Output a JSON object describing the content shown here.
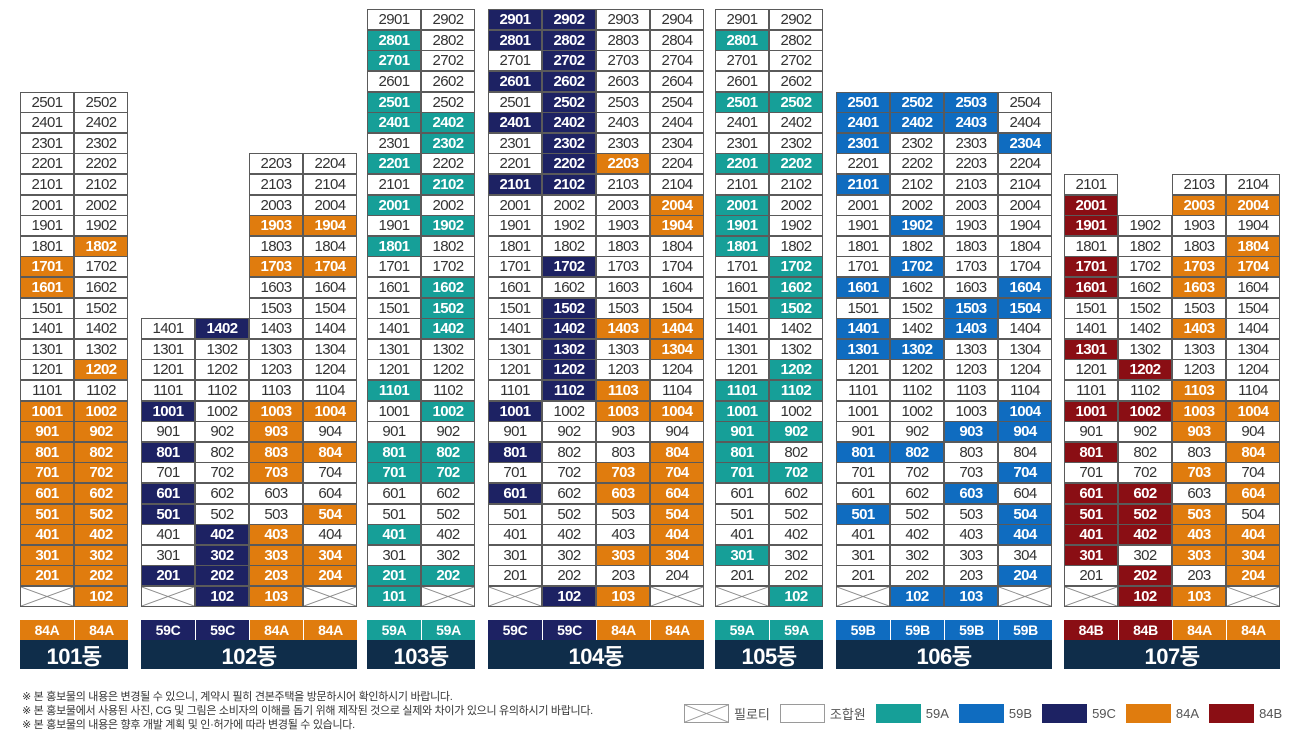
{
  "colors": {
    "59A": "#169f98",
    "59B": "#0f6cc0",
    "59C": "#1d2263",
    "84A": "#e07c0e",
    "84B": "#8a0e14",
    "name_bar": "#0f2d4a"
  },
  "buildings": [
    {
      "name": "101동",
      "top_floor": 25,
      "columns": [
        {
          "line": "01",
          "type": "84A",
          "floors": [
            2,
            25
          ],
          "piloti": [
            1
          ],
          "color_floors": [
            2,
            3,
            4,
            5,
            6,
            7,
            8,
            9,
            10,
            16,
            17
          ]
        },
        {
          "line": "02",
          "type": "84A",
          "floors": [
            1,
            25
          ],
          "color_floors": [
            1,
            2,
            3,
            4,
            5,
            6,
            7,
            8,
            9,
            10,
            12,
            18
          ]
        }
      ]
    },
    {
      "name": "102동",
      "top_floor": 25,
      "columns": [
        {
          "line": "01",
          "type": "59C",
          "floors": [
            2,
            14
          ],
          "piloti": [
            1
          ],
          "color_floors": [
            2,
            5,
            6,
            8,
            10
          ]
        },
        {
          "line": "02",
          "type": "59C",
          "floors": [
            1,
            14
          ],
          "color_floors": [
            1,
            2,
            3,
            4,
            14
          ]
        },
        {
          "line": "03",
          "type": "84A",
          "floors": [
            1,
            22
          ],
          "color_floors": [
            1,
            2,
            3,
            4,
            7,
            8,
            9,
            10,
            17,
            19
          ]
        },
        {
          "line": "04",
          "type": "84A",
          "floors": [
            2,
            22
          ],
          "piloti": [
            1
          ],
          "color_floors": [
            2,
            3,
            5,
            8,
            10,
            17,
            19
          ]
        }
      ]
    },
    {
      "name": "103동",
      "top_floor": 29,
      "columns": [
        {
          "line": "01",
          "type": "59A",
          "floors": [
            1,
            29
          ],
          "color_floors": [
            1,
            2,
            4,
            7,
            8,
            11,
            18,
            20,
            22,
            24,
            25,
            27,
            28
          ]
        },
        {
          "line": "02",
          "type": "59A",
          "floors": [
            2,
            29
          ],
          "piloti": [
            1
          ],
          "color_floors": [
            2,
            7,
            8,
            10,
            14,
            15,
            16,
            19,
            21,
            23,
            24
          ]
        }
      ]
    },
    {
      "name": "104동",
      "top_floor": 29,
      "columns": [
        {
          "line": "01",
          "type": "59C",
          "floors": [
            2,
            29
          ],
          "piloti": [
            1
          ],
          "color_floors": [
            6,
            8,
            10,
            21,
            24,
            26,
            28,
            29
          ]
        },
        {
          "line": "02",
          "type": "59C",
          "floors": [
            1,
            29
          ],
          "color_floors": [
            1,
            11,
            12,
            13,
            14,
            15,
            17,
            21,
            22,
            23,
            24,
            25,
            26,
            27,
            28,
            29
          ]
        },
        {
          "line": "03",
          "type": "84A",
          "floors": [
            1,
            29
          ],
          "color_floors": [
            1,
            3,
            6,
            7,
            10,
            11,
            14,
            22
          ]
        },
        {
          "line": "04",
          "type": "84A",
          "floors": [
            2,
            29
          ],
          "piloti": [
            1
          ],
          "color_floors": [
            3,
            4,
            5,
            6,
            7,
            8,
            10,
            13,
            14,
            19,
            20
          ]
        }
      ]
    },
    {
      "name": "105동",
      "top_floor": 29,
      "columns": [
        {
          "line": "01",
          "type": "59A",
          "floors": [
            2,
            29
          ],
          "piloti": [
            1
          ],
          "color_floors": [
            3,
            7,
            8,
            9,
            10,
            11,
            18,
            19,
            20,
            22,
            25,
            28
          ]
        },
        {
          "line": "02",
          "type": "59A",
          "floors": [
            1,
            29
          ],
          "color_floors": [
            1,
            7,
            9,
            11,
            12,
            15,
            16,
            17,
            22,
            25
          ]
        }
      ]
    },
    {
      "name": "106동",
      "top_floor": 25,
      "columns": [
        {
          "line": "01",
          "type": "59B",
          "floors": [
            2,
            25
          ],
          "piloti": [
            1
          ],
          "color_floors": [
            5,
            8,
            13,
            14,
            16,
            21,
            23,
            24,
            25
          ]
        },
        {
          "line": "02",
          "type": "59B",
          "floors": [
            1,
            25
          ],
          "color_floors": [
            1,
            8,
            13,
            17,
            19,
            24,
            25
          ]
        },
        {
          "line": "03",
          "type": "59B",
          "floors": [
            1,
            25
          ],
          "color_floors": [
            1,
            6,
            9,
            14,
            15,
            24,
            25
          ]
        },
        {
          "line": "04",
          "type": "59B",
          "floors": [
            2,
            25
          ],
          "piloti": [
            1
          ],
          "color_floors": [
            2,
            4,
            5,
            7,
            9,
            10,
            15,
            16,
            23
          ]
        }
      ]
    },
    {
      "name": "107동",
      "columns": [
        {
          "line": "01",
          "type": "84B",
          "floors": [
            2,
            21
          ],
          "piloti": [
            1
          ],
          "color_floors": [
            3,
            4,
            5,
            6,
            8,
            10,
            13,
            16,
            17,
            19,
            20
          ]
        },
        {
          "line": "02",
          "type": "84B",
          "floors": [
            1,
            19
          ],
          "color_floors": [
            1,
            2,
            4,
            5,
            6,
            10,
            12
          ]
        },
        {
          "line": "03",
          "type": "84A",
          "floors": [
            1,
            21
          ],
          "color_floors": [
            1,
            3,
            4,
            5,
            7,
            9,
            10,
            11,
            14,
            16,
            17,
            20
          ]
        },
        {
          "line": "04",
          "type": "84A",
          "floors": [
            2,
            21
          ],
          "piloti": [
            1
          ],
          "color_floors": [
            2,
            3,
            4,
            6,
            8,
            10,
            17,
            18,
            20
          ]
        }
      ]
    }
  ],
  "notes": [
    "※ 본 홍보물의 내용은 변경될 수 있으니, 계약시 필히 견본주택을 방문하시어 확인하시기 바랍니다.",
    "※ 본 홍보물에서 사용된 사진, CG 및 그림은 소비자의 이해를 돕기 위해 제작된 것으로 실제와 차이가 있으니 유의하시기 바랍니다.",
    "※ 본 홍보물의 내용은 향후 개발 계획 및 인·허가에 따라 변경될 수 있습니다."
  ],
  "legend": [
    {
      "label": "필로티",
      "kind": "piloti"
    },
    {
      "label": "조합원",
      "kind": "member"
    },
    {
      "label": "59A",
      "kind": "type",
      "color": "#169f98"
    },
    {
      "label": "59B",
      "kind": "type",
      "color": "#0f6cc0"
    },
    {
      "label": "59C",
      "kind": "type",
      "color": "#1d2263"
    },
    {
      "label": "84A",
      "kind": "type",
      "color": "#e07c0e"
    },
    {
      "label": "84B",
      "kind": "type",
      "color": "#8a0e14"
    }
  ]
}
